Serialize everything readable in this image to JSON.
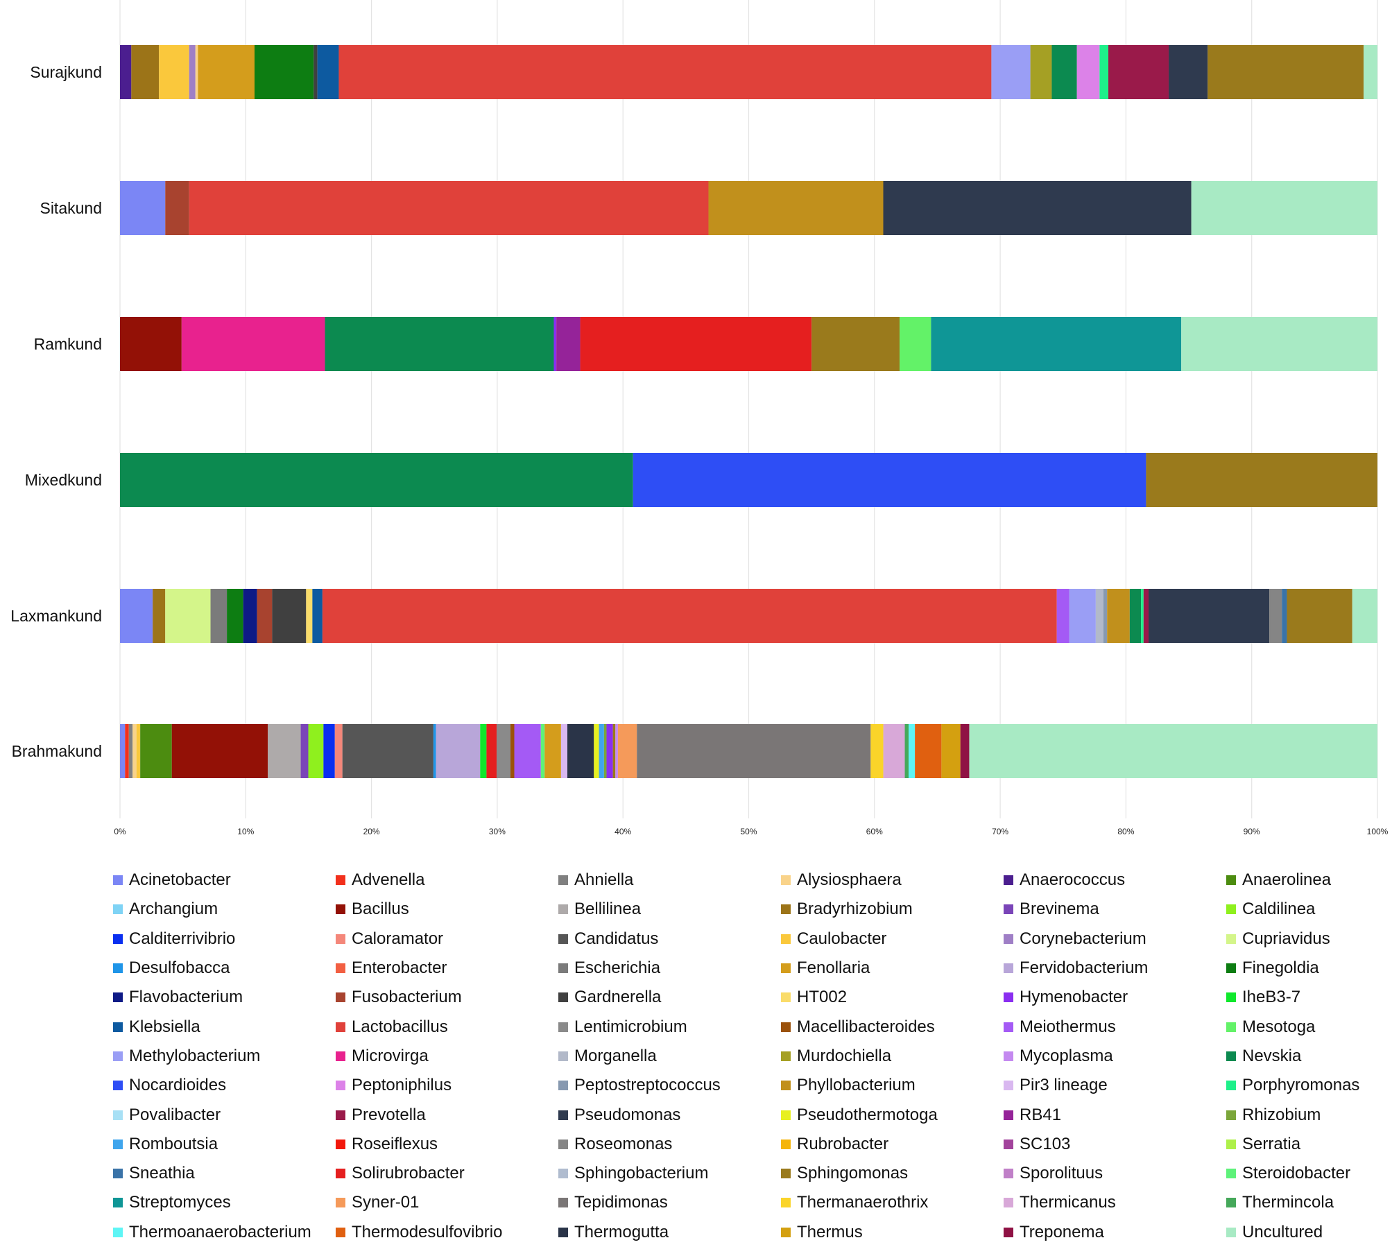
{
  "chart_data": {
    "type": "bar",
    "orientation": "horizontal",
    "stacked": true,
    "normalized": true,
    "categories": [
      "Surajkund",
      "Sitakund",
      "Ramkund",
      "Mixedkund",
      "Laxmankund",
      "Brahmakund"
    ],
    "x_ticks": [
      "0%",
      "10%",
      "20%",
      "30%",
      "40%",
      "50%",
      "60%",
      "70%",
      "80%",
      "90%",
      "100%"
    ],
    "xlim": [
      0,
      100
    ],
    "grid": "vertical",
    "legend_position": "bottom",
    "legend": [
      {
        "name": "Acinetobacter",
        "color": "#7b86f5"
      },
      {
        "name": "Advenella",
        "color": "#f2301c"
      },
      {
        "name": "Ahniella",
        "color": "#808080"
      },
      {
        "name": "Alysiosphaera",
        "color": "#f9d38a"
      },
      {
        "name": "Anaerococcus",
        "color": "#4b1e8f"
      },
      {
        "name": "Anaerolinea",
        "color": "#4c8c10"
      },
      {
        "name": "Archangium",
        "color": "#7fd3f5"
      },
      {
        "name": "Bacillus",
        "color": "#931106"
      },
      {
        "name": "Bellilinea",
        "color": "#aeaaaa"
      },
      {
        "name": "Bradyrhizobium",
        "color": "#9c7418"
      },
      {
        "name": "Brevinema",
        "color": "#7a45b8"
      },
      {
        "name": "Caldilinea",
        "color": "#8ff01e"
      },
      {
        "name": "Calditerrivibrio",
        "color": "#0a2ff0"
      },
      {
        "name": "Caloramator",
        "color": "#f4877a"
      },
      {
        "name": "Candidatus",
        "color": "#565656"
      },
      {
        "name": "Caulobacter",
        "color": "#fac83c"
      },
      {
        "name": "Corynebacterium",
        "color": "#9f7fc6"
      },
      {
        "name": "Cupriavidus",
        "color": "#d4f58a"
      },
      {
        "name": "Desulfobacca",
        "color": "#1f95e8"
      },
      {
        "name": "Enterobacter",
        "color": "#f25f42"
      },
      {
        "name": "Escherichia",
        "color": "#7b7b7b"
      },
      {
        "name": "Fenollaria",
        "color": "#d49d1c"
      },
      {
        "name": "Fervidobacterium",
        "color": "#b8a6d9"
      },
      {
        "name": "Finegoldia",
        "color": "#0d7d12"
      },
      {
        "name": "Flavobacterium",
        "color": "#0e1a86"
      },
      {
        "name": "Fusobacterium",
        "color": "#a8432f"
      },
      {
        "name": "Gardnerella",
        "color": "#404040"
      },
      {
        "name": "HT002",
        "color": "#fadc6a"
      },
      {
        "name": "Hymenobacter",
        "color": "#8a2ef0"
      },
      {
        "name": "IheB3-7",
        "color": "#10e82c"
      },
      {
        "name": "Klebsiella",
        "color": "#0d5aa0"
      },
      {
        "name": "Lactobacillus",
        "color": "#e0413a"
      },
      {
        "name": "Lentimicrobium",
        "color": "#8a8a8a"
      },
      {
        "name": "Macellibacteroides",
        "color": "#9b520c"
      },
      {
        "name": "Meiothermus",
        "color": "#a45af5"
      },
      {
        "name": "Mesotoga",
        "color": "#63f268"
      },
      {
        "name": "Methylobacterium",
        "color": "#9a9ef5"
      },
      {
        "name": "Microvirga",
        "color": "#e8228e"
      },
      {
        "name": "Morganella",
        "color": "#b2b9c9"
      },
      {
        "name": "Murdochiella",
        "color": "#a5a024"
      },
      {
        "name": "Mycoplasma",
        "color": "#c489f0"
      },
      {
        "name": "Nevskia",
        "color": "#0c8a50"
      },
      {
        "name": "Nocardioides",
        "color": "#2e4ef5"
      },
      {
        "name": "Peptoniphilus",
        "color": "#dc82e8"
      },
      {
        "name": "Peptostreptococcus",
        "color": "#8799b0"
      },
      {
        "name": "Phyllobacterium",
        "color": "#c1901c"
      },
      {
        "name": "Pir3 lineage",
        "color": "#d9b8f0"
      },
      {
        "name": "Porphyromonas",
        "color": "#1ef08a"
      },
      {
        "name": "Povalibacter",
        "color": "#a8e0f5"
      },
      {
        "name": "Prevotella",
        "color": "#9a1a4a"
      },
      {
        "name": "Pseudomonas",
        "color": "#2f3a4f"
      },
      {
        "name": "Pseudothermotoga",
        "color": "#e8f020"
      },
      {
        "name": "RB41",
        "color": "#952399"
      },
      {
        "name": "Rhizobium",
        "color": "#7ba63a"
      },
      {
        "name": "Romboutsia",
        "color": "#3fa5ed"
      },
      {
        "name": "Roseiflexus",
        "color": "#f2180c"
      },
      {
        "name": "Roseomonas",
        "color": "#858585"
      },
      {
        "name": "Rubrobacter",
        "color": "#f5b50a"
      },
      {
        "name": "SC103",
        "color": "#a2439c"
      },
      {
        "name": "Serratia",
        "color": "#aef04a"
      },
      {
        "name": "Sneathia",
        "color": "#3a73a8"
      },
      {
        "name": "Solirubrobacter",
        "color": "#e51f1f"
      },
      {
        "name": "Sphingobacterium",
        "color": "#b0bccf"
      },
      {
        "name": "Sphingomonas",
        "color": "#9a7a1c"
      },
      {
        "name": "Sporolituus",
        "color": "#c080c8"
      },
      {
        "name": "Steroidobacter",
        "color": "#5ef27a"
      },
      {
        "name": "Streptomyces",
        "color": "#0f9696"
      },
      {
        "name": "Syner-01",
        "color": "#f59a5a"
      },
      {
        "name": "Tepidimonas",
        "color": "#7a7676"
      },
      {
        "name": "Thermanaerothrix",
        "color": "#fad42a"
      },
      {
        "name": "Thermicanus",
        "color": "#d8a8d8"
      },
      {
        "name": "Thermincola",
        "color": "#45a85a"
      },
      {
        "name": "Thermoanaerobacterium",
        "color": "#5ef5f5"
      },
      {
        "name": "Thermodesulfovibrio",
        "color": "#e06010"
      },
      {
        "name": "Thermogutta",
        "color": "#2a3448"
      },
      {
        "name": "Thermus",
        "color": "#d4a010"
      },
      {
        "name": "Treponema",
        "color": "#8f1244"
      },
      {
        "name": "Uncultured",
        "color": "#a8eac4"
      }
    ],
    "series_values": {
      "Surajkund": [
        [
          "Anaerococcus",
          0.9
        ],
        [
          "Bradyrhizobium",
          2.2
        ],
        [
          "Caulobacter",
          2.4
        ],
        [
          "Corynebacterium",
          0.5
        ],
        [
          "Alysiosphaera",
          0.2
        ],
        [
          "Fenollaria",
          4.5
        ],
        [
          "Finegoldia",
          4.7
        ],
        [
          "Gardnerella",
          0.3
        ],
        [
          "Klebsiella",
          1.7
        ],
        [
          "Lactobacillus",
          51.9
        ],
        [
          "Methylobacterium",
          3.1
        ],
        [
          "Murdochiella",
          1.7
        ],
        [
          "Nevskia",
          2.0
        ],
        [
          "Peptoniphilus",
          1.8
        ],
        [
          "Porphyromonas",
          0.7
        ],
        [
          "Prevotella",
          4.8
        ],
        [
          "Pseudomonas",
          3.1
        ],
        [
          "Sphingomonas",
          12.4
        ],
        [
          "Uncultured",
          1.1
        ]
      ],
      "Sitakund": [
        [
          "Acinetobacter",
          3.6
        ],
        [
          "Fusobacterium",
          1.9
        ],
        [
          "Lactobacillus",
          41.3
        ],
        [
          "Phyllobacterium",
          13.9
        ],
        [
          "Pseudomonas",
          24.5
        ],
        [
          "Uncultured",
          14.8
        ]
      ],
      "Ramkund": [
        [
          "Bacillus",
          4.9
        ],
        [
          "Microvirga",
          11.4
        ],
        [
          "Nevskia",
          18.2
        ],
        [
          "Hymenobacter",
          0.2
        ],
        [
          "RB41",
          1.9
        ],
        [
          "Solirubrobacter",
          18.4
        ],
        [
          "Sphingomonas",
          7.0
        ],
        [
          "Mesotoga",
          2.5
        ],
        [
          "Streptomyces",
          19.9
        ],
        [
          "Uncultured",
          15.6
        ]
      ],
      "Mixedkund": [
        [
          "Nevskia",
          40.8
        ],
        [
          "Nocardioides",
          40.8
        ],
        [
          "Sphingomonas",
          18.4
        ]
      ],
      "Laxmankund": [
        [
          "Acinetobacter",
          2.6
        ],
        [
          "Bradyrhizobium",
          1.0
        ],
        [
          "Cupriavidus",
          3.6
        ],
        [
          "Escherichia",
          1.3
        ],
        [
          "Finegoldia",
          1.3
        ],
        [
          "Flavobacterium",
          1.1
        ],
        [
          "Fusobacterium",
          1.2
        ],
        [
          "Gardnerella",
          2.7
        ],
        [
          "HT002",
          0.5
        ],
        [
          "Klebsiella",
          0.8
        ],
        [
          "Lactobacillus",
          58.4
        ],
        [
          "Meiothermus",
          1.0
        ],
        [
          "Methylobacterium",
          2.1
        ],
        [
          "Morganella",
          0.6
        ],
        [
          "Peptostreptococcus",
          0.3
        ],
        [
          "Phyllobacterium",
          1.8
        ],
        [
          "Nevskia",
          0.9
        ],
        [
          "Porphyromonas",
          0.2
        ],
        [
          "Prevotella",
          0.4
        ],
        [
          "Pseudomonas",
          9.6
        ],
        [
          "Roseomonas",
          1.0
        ],
        [
          "Sneathia",
          0.4
        ],
        [
          "Sphingomonas",
          5.2
        ],
        [
          "Uncultured",
          2.0
        ]
      ],
      "Brahmakund": [
        [
          "Acinetobacter",
          0.4
        ],
        [
          "Advenella",
          0.3
        ],
        [
          "Ahniella",
          0.3
        ],
        [
          "Alysiosphaera",
          0.3
        ],
        [
          "Caulobacter",
          0.3
        ],
        [
          "Anaerolinea",
          2.5
        ],
        [
          "Bacillus",
          7.6
        ],
        [
          "Bellilinea",
          2.6
        ],
        [
          "Brevinema",
          0.6
        ],
        [
          "Caldilinea",
          1.2
        ],
        [
          "Calditerrivibrio",
          0.9
        ],
        [
          "Caloramator",
          0.6
        ],
        [
          "Candidatus",
          7.2
        ],
        [
          "Desulfobacca",
          0.2
        ],
        [
          "Fervidobacterium",
          3.5
        ],
        [
          "IheB3-7",
          0.5
        ],
        [
          "Solirubrobacter",
          0.8
        ],
        [
          "Lentimicrobium",
          1.1
        ],
        [
          "Macellibacteroides",
          0.3
        ],
        [
          "Meiothermus",
          2.1
        ],
        [
          "Steroidobacter",
          0.3
        ],
        [
          "Fenollaria",
          1.3
        ],
        [
          "Pir3 lineage",
          0.5
        ],
        [
          "Thermogutta",
          2.1
        ],
        [
          "Pseudothermotoga",
          0.4
        ],
        [
          "Romboutsia",
          0.4
        ],
        [
          "Rhizobium",
          0.2
        ],
        [
          "Hymenobacter",
          0.5
        ],
        [
          "Sphingomonas",
          0.2
        ],
        [
          "Mycoplasma",
          0.2
        ],
        [
          "Syner-01",
          1.5
        ],
        [
          "Tepidimonas",
          18.5
        ],
        [
          "Thermanaerothrix",
          1.0
        ],
        [
          "Thermicanus",
          1.7
        ],
        [
          "Thermincola",
          0.3
        ],
        [
          "Thermoanaerobacterium",
          0.5
        ],
        [
          "Thermodesulfovibrio",
          2.1
        ],
        [
          "Thermus",
          1.5
        ],
        [
          "Treponema",
          0.7
        ],
        [
          "Uncultured",
          32.3
        ]
      ]
    }
  }
}
